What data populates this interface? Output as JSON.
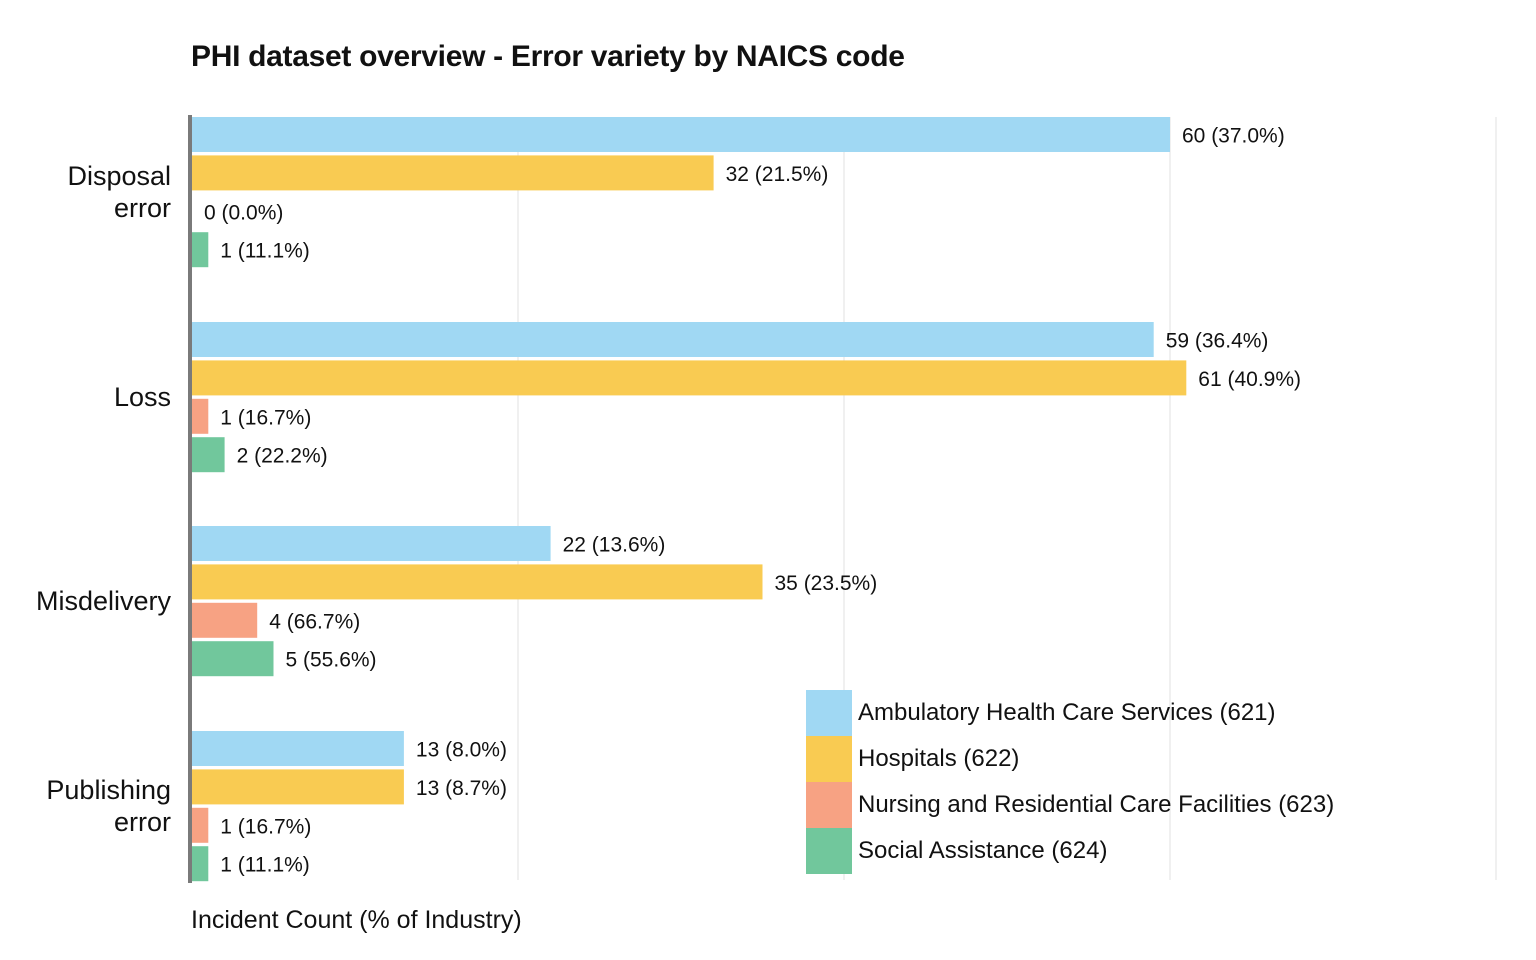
{
  "chart_data": {
    "type": "bar",
    "orientation": "horizontal",
    "title": "PHI dataset overview - Error variety by NAICS code",
    "xlabel": "Incident Count (% of Industry)",
    "ylabel": "",
    "xlim": [
      0,
      80
    ],
    "grid": true,
    "legend_position": "bottom-right",
    "categories": [
      "Disposal error",
      "Loss",
      "Misdelivery",
      "Publishing error"
    ],
    "series": [
      {
        "name": "Ambulatory Health Care Services (621)",
        "color": "#a0d8f3",
        "values": [
          60,
          59,
          22,
          13
        ],
        "labels": [
          "60 (37.0%)",
          "59 (36.4%)",
          "22 (13.6%)",
          "13 (8.0%)"
        ]
      },
      {
        "name": "Hospitals (622)",
        "color": "#f9cb52",
        "values": [
          32,
          61,
          35,
          13
        ],
        "labels": [
          "32 (21.5%)",
          "61 (40.9%)",
          "35 (23.5%)",
          "13 (8.7%)"
        ]
      },
      {
        "name": "Nursing and Residential Care Facilities (623)",
        "color": "#f7a283",
        "values": [
          0,
          1,
          4,
          1
        ],
        "labels": [
          "0 (0.0%)",
          "1 (16.7%)",
          "4 (66.7%)",
          "1 (16.7%)"
        ]
      },
      {
        "name": "Social Assistance (624)",
        "color": "#71c79c",
        "values": [
          1,
          2,
          5,
          1
        ],
        "labels": [
          "1 (11.1%)",
          "2 (22.2%)",
          "5 (55.6%)",
          "1 (11.1%)"
        ]
      }
    ]
  }
}
